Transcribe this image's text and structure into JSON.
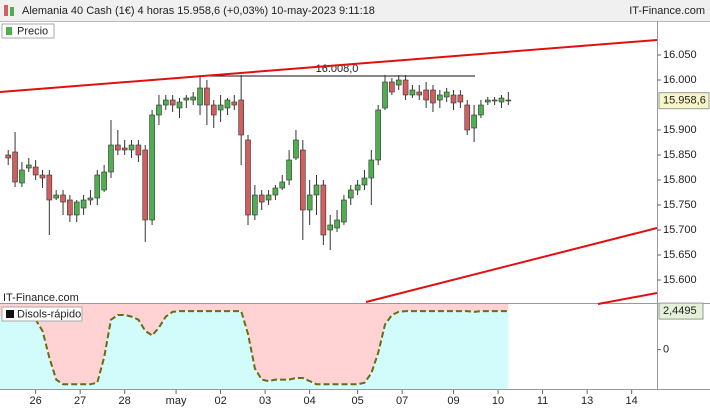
{
  "chart_data": [
    {
      "type": "candlestick",
      "title": "Alemania 40 Cash (1€) 4 horas 15.958,6 (+0,03%) 10-may-2023 9:11:18",
      "source": "IT-Finance.com",
      "watermark": "IT-Finance.com",
      "legend": "Precio",
      "x": [
        0,
        1,
        2,
        3,
        4,
        5,
        6,
        7,
        8,
        9,
        10,
        11,
        12,
        13,
        14,
        15,
        16,
        17,
        18,
        19,
        20,
        21,
        22,
        23,
        24,
        25,
        26,
        27,
        28,
        29,
        30,
        31,
        32,
        33,
        34,
        35,
        36,
        37,
        38,
        39,
        40,
        41,
        42,
        43,
        44,
        45,
        46,
        47,
        48,
        49,
        50,
        51,
        52,
        53,
        54,
        55,
        56,
        57,
        58,
        59,
        60,
        61,
        62,
        63,
        64,
        65,
        66,
        67,
        68,
        69,
        70,
        71,
        72,
        73
      ],
      "open": [
        15850,
        15856,
        15794,
        15824,
        15826,
        15810,
        15810,
        15764,
        15770,
        15760,
        15730,
        15744,
        15760,
        15764,
        15780,
        15816,
        15870,
        15864,
        15860,
        15870,
        15860,
        15720,
        15930,
        15950,
        15960,
        15944,
        15960,
        15960,
        15950,
        15984,
        15950,
        15940,
        15944,
        15956,
        15960,
        15880,
        15730,
        15770,
        15760,
        15770,
        15784,
        15800,
        15844,
        15860,
        15740,
        15770,
        15790,
        15700,
        15704,
        15716,
        15764,
        15780,
        15790,
        15804,
        15840,
        15944,
        15996,
        15990,
        16000,
        15970,
        15976,
        15980,
        15980,
        15960,
        15966,
        15970,
        15970,
        15950,
        15904,
        15930,
        15956,
        15960,
        15956,
        15960
      ],
      "high": [
        15860,
        15896,
        15836,
        15844,
        15840,
        15820,
        15820,
        15780,
        15780,
        15770,
        15760,
        15770,
        15780,
        15820,
        15830,
        15920,
        15900,
        15880,
        15880,
        15880,
        15870,
        15940,
        15970,
        15970,
        15970,
        15964,
        15970,
        15976,
        16010,
        16000,
        15960,
        15970,
        15964,
        15970,
        16010,
        15890,
        15790,
        15780,
        15780,
        15790,
        15810,
        15860,
        15900,
        15880,
        15800,
        15810,
        15800,
        15730,
        15740,
        15770,
        15790,
        15800,
        15820,
        15860,
        15950,
        16010,
        16004,
        16010,
        16010,
        15990,
        15990,
        15996,
        15990,
        15980,
        15984,
        15980,
        15980,
        15960,
        15950,
        15960,
        15966,
        15966,
        15970,
        15976
      ],
      "low": [
        15830,
        15786,
        15786,
        15816,
        15800,
        15784,
        15690,
        15760,
        15730,
        15716,
        15716,
        15730,
        15750,
        15750,
        15776,
        15804,
        15850,
        15850,
        15844,
        15836,
        15676,
        15710,
        15910,
        15940,
        15936,
        15924,
        15944,
        15950,
        15930,
        15910,
        15904,
        15916,
        15930,
        15940,
        15830,
        15710,
        15720,
        15740,
        15750,
        15760,
        15780,
        15790,
        15840,
        15680,
        15710,
        15730,
        15670,
        15660,
        15696,
        15710,
        15750,
        15770,
        15780,
        15750,
        15830,
        15940,
        15970,
        15980,
        15960,
        15964,
        15960,
        15944,
        15936,
        15944,
        15956,
        15940,
        15944,
        15890,
        15876,
        15924,
        15950,
        15950,
        15944,
        15950
      ],
      "close": [
        15844,
        15796,
        15820,
        15830,
        15810,
        15804,
        15760,
        15770,
        15756,
        15730,
        15756,
        15760,
        15764,
        15810,
        15816,
        15870,
        15860,
        15860,
        15870,
        15850,
        15720,
        15930,
        15950,
        15960,
        15950,
        15956,
        15964,
        15966,
        15984,
        15950,
        15930,
        15950,
        15960,
        15950,
        15890,
        15730,
        15770,
        15756,
        15770,
        15784,
        15796,
        15840,
        15880,
        15740,
        15770,
        15790,
        15690,
        15710,
        15720,
        15760,
        15780,
        15790,
        15804,
        15840,
        15940,
        15996,
        15976,
        16000,
        15970,
        15980,
        15970,
        15960,
        15954,
        15970,
        15976,
        15954,
        15956,
        15900,
        15930,
        15950,
        15960,
        15958,
        15964,
        15958.6
      ],
      "up_color": "#4fae4f",
      "down_color": "#d06060",
      "xlim": [
        -1.2,
        94.7
      ],
      "xticks": [
        {
          "value": 4,
          "label": "26"
        },
        {
          "value": 10.5,
          "label": "27"
        },
        {
          "value": 17,
          "label": "28"
        },
        {
          "value": 24.5,
          "label": "may"
        },
        {
          "value": 31,
          "label": "02"
        },
        {
          "value": 37.5,
          "label": "03"
        },
        {
          "value": 44,
          "label": "04"
        },
        {
          "value": 51,
          "label": "05"
        },
        {
          "value": 57.5,
          "label": "07"
        },
        {
          "value": 65,
          "label": "09"
        },
        {
          "value": 71.5,
          "label": "10"
        },
        {
          "value": 78,
          "label": "11"
        },
        {
          "value": 84.5,
          "label": "13"
        },
        {
          "value": 91,
          "label": "14"
        }
      ],
      "ylim": [
        15560,
        16116
      ],
      "yticks": [
        {
          "value": 16050,
          "label": "16.050"
        },
        {
          "value": 16000,
          "label": "16.000"
        },
        {
          "value": 15900,
          "label": "15.900"
        },
        {
          "value": 15850,
          "label": "15.850"
        },
        {
          "value": 15800,
          "label": "15.800"
        },
        {
          "value": 15750,
          "label": "15.750"
        },
        {
          "value": 15700,
          "label": "15.700"
        },
        {
          "value": 15650,
          "label": "15.650"
        },
        {
          "value": 15600,
          "label": "15.600"
        }
      ],
      "last_label": "15.958,6",
      "annotations": [
        {
          "value": 16008,
          "label": "16.008,0"
        }
      ]
    },
    {
      "type": "area",
      "name": "Disols-rápido",
      "x": [
        0,
        1,
        2,
        3,
        4,
        5,
        6,
        7,
        8,
        9,
        10,
        11,
        12,
        13,
        14,
        15,
        16,
        17,
        18,
        19,
        20,
        21,
        22,
        23,
        24,
        25,
        26,
        27,
        28,
        29,
        30,
        31,
        32,
        33,
        34,
        35,
        36,
        37,
        38,
        39,
        40,
        41,
        42,
        43,
        44,
        45,
        46,
        47,
        48,
        49,
        50,
        51,
        52,
        53,
        54,
        55,
        56,
        57,
        58,
        59,
        60,
        61,
        62,
        63,
        64,
        65,
        66,
        67,
        68,
        69,
        70,
        71,
        72,
        73
      ],
      "values": [
        2.1,
        2.1,
        2.1,
        2.0,
        1.9,
        1.2,
        -0.5,
        -1.9,
        -2.2,
        -2.2,
        -2.2,
        -2.2,
        -2.2,
        -2.1,
        -0.5,
        1.9,
        2.2,
        2.2,
        2.1,
        1.9,
        1.2,
        0.9,
        1.4,
        2.1,
        2.4,
        2.45,
        2.45,
        2.45,
        2.45,
        2.45,
        2.45,
        2.45,
        2.45,
        2.45,
        2.45,
        1.0,
        -1.2,
        -1.9,
        -2.0,
        -1.9,
        -1.9,
        -1.9,
        -1.8,
        -1.8,
        -2.0,
        -2.2,
        -2.2,
        -2.2,
        -2.2,
        -2.2,
        -2.2,
        -2.2,
        -2.1,
        -1.5,
        -0.2,
        1.6,
        2.2,
        2.4,
        2.45,
        2.45,
        2.45,
        2.45,
        2.45,
        2.45,
        2.45,
        2.45,
        2.45,
        2.45,
        2.4,
        2.45,
        2.45,
        2.45,
        2.45,
        2.4495
      ],
      "color": "#6b6b10",
      "fill_above": "#ffd3d3",
      "fill_below": "#d2fbfb",
      "xlim": [
        -1.2,
        94.7
      ],
      "ylim": [
        -2.5,
        2.9
      ],
      "yticks": [
        0
      ],
      "last_label": "2,4495"
    }
  ]
}
